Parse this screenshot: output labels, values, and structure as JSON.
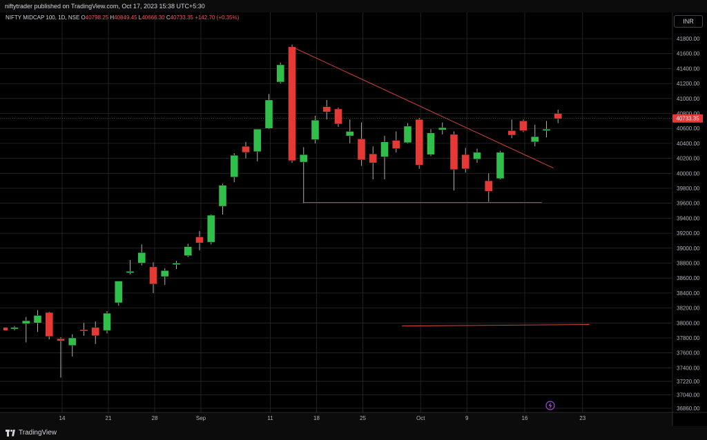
{
  "header": {
    "published_text": "niftytrader published on TradingView.com, Oct 17, 2023 15:38 UTC+5:30"
  },
  "legend": {
    "symbol": "NIFTY MIDCAP 100, 1D, NSE",
    "o_label": "O",
    "o": "40798.25",
    "h_label": "H",
    "h": "40849.45",
    "l_label": "L",
    "l": "40666.30",
    "c_label": "C",
    "c": "40733.35",
    "change": "+142.70 (+0.35%)"
  },
  "currency": "INR",
  "footer": {
    "brand": "TradingView"
  },
  "colors": {
    "up": "#2fbf4a",
    "down": "#e53935",
    "trendline": "#d9473b",
    "grid": "#2a2a2a",
    "price_tag": "#e53935"
  },
  "chart_data": {
    "type": "candlestick",
    "ylim": [
      36860,
      42000
    ],
    "y_ticks": [
      36860,
      37040,
      37220,
      37400,
      37600,
      37800,
      38000,
      38200,
      38400,
      38600,
      38800,
      39000,
      39200,
      39400,
      39600,
      39800,
      40000,
      40200,
      40400,
      40600,
      40800,
      41000,
      41200,
      41400,
      41600,
      41800
    ],
    "y_tick_labels": [
      "36860.00",
      "37040.00",
      "37220.00",
      "37400.00",
      "37600.00",
      "37800.00",
      "38000.00",
      "38200.00",
      "38400.00",
      "38600.00",
      "38800.00",
      "39000.00",
      "39200.00",
      "39400.00",
      "39600.00",
      "39800.00",
      "40000.00",
      "40200.00",
      "40400.00",
      "40600.00",
      "40800.00",
      "41000.00",
      "41200.00",
      "41400.00",
      "41600.00",
      "41800.00"
    ],
    "x_tick_labels": [
      {
        "label": "14",
        "index": 4
      },
      {
        "label": "21",
        "index": 8
      },
      {
        "label": "28",
        "index": 12
      },
      {
        "label": "Sep",
        "index": 16
      },
      {
        "label": "11",
        "index": 22
      },
      {
        "label": "18",
        "index": 26
      },
      {
        "label": "25",
        "index": 30
      },
      {
        "label": "Oct",
        "index": 35
      },
      {
        "label": "9",
        "index": 39
      },
      {
        "label": "16",
        "index": 44
      },
      {
        "label": "23",
        "index": 49
      }
    ],
    "last_price_label": "40733.35",
    "last_price": 40733.35,
    "candles": [
      {
        "o": 37920,
        "h": 37960,
        "l": 37900,
        "c": 37940
      },
      {
        "o": 37990,
        "h": 38080,
        "l": 37740,
        "c": 38030
      },
      {
        "o": 38000,
        "h": 38170,
        "l": 37880,
        "c": 38100
      },
      {
        "o": 38140,
        "h": 38150,
        "l": 37780,
        "c": 37820
      },
      {
        "o": 37790,
        "h": 37810,
        "l": 37270,
        "c": 37760
      },
      {
        "o": 37700,
        "h": 37850,
        "l": 37550,
        "c": 37800
      },
      {
        "o": 37910,
        "h": 38000,
        "l": 37830,
        "c": 37900
      },
      {
        "o": 37940,
        "h": 38020,
        "l": 37720,
        "c": 37830
      },
      {
        "o": 37900,
        "h": 38160,
        "l": 37860,
        "c": 38130
      },
      {
        "o": 38270,
        "h": 38550,
        "l": 38230,
        "c": 38560
      },
      {
        "o": 38670,
        "h": 38840,
        "l": 38650,
        "c": 38690
      },
      {
        "o": 38800,
        "h": 39050,
        "l": 38770,
        "c": 38940
      },
      {
        "o": 38750,
        "h": 38810,
        "l": 38400,
        "c": 38520
      },
      {
        "o": 38620,
        "h": 38730,
        "l": 38510,
        "c": 38700
      },
      {
        "o": 38780,
        "h": 38830,
        "l": 38720,
        "c": 38800
      },
      {
        "o": 38900,
        "h": 39060,
        "l": 38880,
        "c": 39020
      },
      {
        "o": 39150,
        "h": 39230,
        "l": 38970,
        "c": 39070
      },
      {
        "o": 39080,
        "h": 39450,
        "l": 39050,
        "c": 39440
      },
      {
        "o": 39560,
        "h": 39860,
        "l": 39450,
        "c": 39840
      },
      {
        "o": 39950,
        "h": 40270,
        "l": 39880,
        "c": 40240
      },
      {
        "o": 40360,
        "h": 40420,
        "l": 40200,
        "c": 40280
      },
      {
        "o": 40290,
        "h": 40590,
        "l": 40160,
        "c": 40590
      },
      {
        "o": 40600,
        "h": 41060,
        "l": 40590,
        "c": 40980
      },
      {
        "o": 41220,
        "h": 41480,
        "l": 41200,
        "c": 41450
      },
      {
        "o": 41690,
        "h": 41720,
        "l": 40140,
        "c": 40170
      },
      {
        "o": 40150,
        "h": 40350,
        "l": 39600,
        "c": 40250
      },
      {
        "o": 40450,
        "h": 40770,
        "l": 40400,
        "c": 40710
      },
      {
        "o": 40890,
        "h": 40980,
        "l": 40720,
        "c": 40820
      },
      {
        "o": 40860,
        "h": 40880,
        "l": 40620,
        "c": 40660
      },
      {
        "o": 40500,
        "h": 40720,
        "l": 40400,
        "c": 40560
      },
      {
        "o": 40460,
        "h": 40680,
        "l": 40100,
        "c": 40180
      },
      {
        "o": 40260,
        "h": 40360,
        "l": 39920,
        "c": 40140
      },
      {
        "o": 40220,
        "h": 40500,
        "l": 39920,
        "c": 40420
      },
      {
        "o": 40440,
        "h": 40560,
        "l": 40280,
        "c": 40330
      },
      {
        "o": 40410,
        "h": 40670,
        "l": 40400,
        "c": 40630
      },
      {
        "o": 40720,
        "h": 40740,
        "l": 40060,
        "c": 40110
      },
      {
        "o": 40250,
        "h": 40590,
        "l": 40230,
        "c": 40540
      },
      {
        "o": 40580,
        "h": 40680,
        "l": 40520,
        "c": 40610
      },
      {
        "o": 40520,
        "h": 40560,
        "l": 39770,
        "c": 40050
      },
      {
        "o": 40250,
        "h": 40340,
        "l": 40010,
        "c": 40060
      },
      {
        "o": 40190,
        "h": 40330,
        "l": 40140,
        "c": 40280
      },
      {
        "o": 39900,
        "h": 40000,
        "l": 39620,
        "c": 39760
      },
      {
        "o": 39930,
        "h": 40300,
        "l": 39920,
        "c": 40280
      },
      {
        "o": 40570,
        "h": 40720,
        "l": 40470,
        "c": 40510
      },
      {
        "o": 40700,
        "h": 40720,
        "l": 40550,
        "c": 40570
      },
      {
        "o": 40420,
        "h": 40650,
        "l": 40360,
        "c": 40490
      },
      {
        "o": 40570,
        "h": 40700,
        "l": 40480,
        "c": 40590
      },
      {
        "o": 40800,
        "h": 40850,
        "l": 40670,
        "c": 40730
      }
    ],
    "trendlines": [
      {
        "from": {
          "i": 24,
          "v": 41690
        },
        "to": {
          "i": 46.6,
          "v": 40070
        }
      },
      {
        "from": {
          "i": 25,
          "v": 39610
        },
        "to": {
          "i": 45.6,
          "v": 39610
        }
      },
      {
        "from": {
          "i": 33.5,
          "v": 37960
        },
        "to": {
          "i": 49.7,
          "v": 37980
        }
      }
    ]
  }
}
